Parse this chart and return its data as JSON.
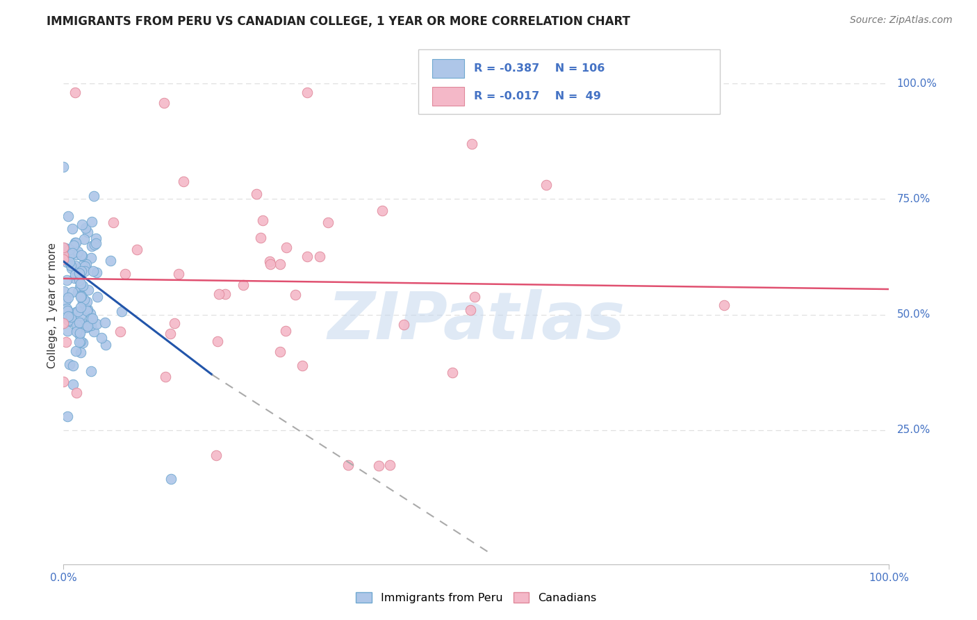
{
  "title": "IMMIGRANTS FROM PERU VS CANADIAN COLLEGE, 1 YEAR OR MORE CORRELATION CHART",
  "source": "Source: ZipAtlas.com",
  "ylabel": "College, 1 year or more",
  "legend_entries": [
    {
      "label": "Immigrants from Peru",
      "R": "-0.387",
      "N": "106",
      "color": "#aec6e8"
    },
    {
      "label": "Canadians",
      "R": "-0.017",
      "N": " 49",
      "color": "#f4b8c8"
    }
  ],
  "watermark": "ZIPatlas",
  "axis_color": "#4472c4",
  "scatter_blue_color": "#aec6e8",
  "scatter_pink_color": "#f4b8c8",
  "scatter_blue_edge": "#6fa8d0",
  "scatter_pink_edge": "#e0889a",
  "trend_blue_solid_color": "#2255aa",
  "trend_blue_dash_color": "#aaaaaa",
  "trend_pink_color": "#e05070",
  "watermark_color": "#c5d8ee",
  "grid_color": "#e0e0e0",
  "title_fontsize": 12,
  "source_fontsize": 10,
  "scatter_size": 110
}
